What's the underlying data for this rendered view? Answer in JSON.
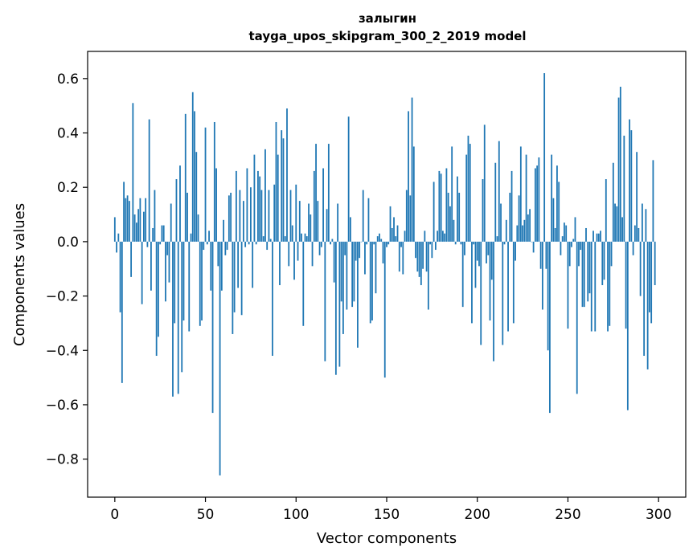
{
  "chart_data": {
    "type": "bar",
    "title_line1": "залыгин",
    "title_line2": "tayga_upos_skipgram_300_2_2019 model",
    "xlabel": "Vector components",
    "ylabel": "Components values",
    "xlim": [
      -15,
      315
    ],
    "ylim": [
      -0.94,
      0.7
    ],
    "xticks": [
      0,
      50,
      100,
      150,
      200,
      250,
      300
    ],
    "yticks": [
      0.6,
      0.4,
      0.2,
      0.0,
      -0.2,
      -0.4,
      -0.6,
      -0.8
    ],
    "ytick_labels": [
      "0.6",
      "0.4",
      "0.2",
      "0.0",
      "−0.2",
      "−0.4",
      "−0.6",
      "−0.8"
    ],
    "bar_color": "#1f77b4",
    "values": [
      0.09,
      -0.04,
      0.03,
      -0.26,
      -0.52,
      0.22,
      0.16,
      0.17,
      0.15,
      -0.13,
      0.51,
      0.1,
      0.07,
      0.12,
      0.16,
      -0.23,
      0.11,
      0.16,
      -0.02,
      0.45,
      -0.18,
      0.05,
      0.19,
      -0.42,
      -0.35,
      -0.01,
      0.06,
      0.06,
      -0.22,
      -0.05,
      -0.15,
      0.14,
      -0.57,
      -0.3,
      0.23,
      -0.56,
      0.28,
      -0.48,
      -0.29,
      0.47,
      0.18,
      -0.33,
      0.03,
      0.55,
      0.48,
      0.33,
      0.1,
      -0.31,
      -0.29,
      -0.03,
      0.42,
      -0.01,
      0.04,
      -0.18,
      -0.63,
      0.44,
      0.27,
      -0.09,
      -0.86,
      -0.18,
      0.08,
      -0.05,
      -0.03,
      0.17,
      0.18,
      -0.34,
      -0.26,
      0.26,
      -0.17,
      0.19,
      -0.27,
      0.15,
      -0.02,
      0.27,
      -0.01,
      0.2,
      -0.17,
      0.32,
      -0.01,
      0.26,
      0.24,
      0.19,
      0.02,
      0.34,
      -0.03,
      0.19,
      0.01,
      -0.42,
      0.21,
      0.44,
      0.32,
      -0.16,
      0.41,
      0.38,
      0.02,
      0.49,
      -0.09,
      0.19,
      0.06,
      -0.14,
      0.21,
      -0.07,
      0.15,
      0.03,
      -0.31,
      0.03,
      0.02,
      0.14,
      0.1,
      -0.09,
      0.26,
      0.36,
      0.15,
      -0.05,
      -0.02,
      0.27,
      -0.44,
      0.12,
      0.36,
      -0.01,
      0.01,
      -0.15,
      -0.49,
      0.14,
      -0.46,
      -0.22,
      -0.34,
      -0.05,
      -0.25,
      0.46,
      0.09,
      -0.24,
      -0.22,
      -0.07,
      -0.39,
      -0.06,
      0.0,
      0.19,
      -0.12,
      -0.01,
      0.16,
      -0.3,
      -0.29,
      -0.01,
      -0.19,
      0.02,
      0.03,
      0.01,
      -0.08,
      -0.5,
      -0.02,
      -0.01,
      0.13,
      0.05,
      0.09,
      0.02,
      0.06,
      -0.11,
      -0.02,
      -0.12,
      0.04,
      0.19,
      0.48,
      0.17,
      0.53,
      0.35,
      -0.06,
      -0.11,
      -0.13,
      -0.16,
      -0.1,
      0.04,
      -0.11,
      -0.25,
      -0.01,
      -0.06,
      0.22,
      -0.03,
      0.04,
      0.26,
      0.25,
      0.04,
      0.03,
      0.27,
      0.18,
      0.13,
      0.35,
      0.08,
      -0.01,
      0.24,
      0.18,
      -0.01,
      -0.24,
      -0.05,
      0.32,
      0.39,
      0.36,
      -0.3,
      -0.01,
      -0.17,
      -0.07,
      -0.09,
      -0.38,
      0.23,
      0.43,
      -0.08,
      -0.05,
      -0.29,
      -0.14,
      -0.44,
      0.29,
      0.02,
      0.37,
      0.14,
      -0.38,
      -0.01,
      0.08,
      -0.33,
      0.18,
      0.26,
      -0.3,
      -0.07,
      0.06,
      0.17,
      0.35,
      0.06,
      0.08,
      0.32,
      0.1,
      0.12,
      0.0,
      -0.04,
      0.27,
      0.28,
      0.31,
      -0.1,
      -0.25,
      0.62,
      -0.1,
      -0.4,
      -0.63,
      0.32,
      0.16,
      0.05,
      0.28,
      0.22,
      -0.05,
      0.02,
      0.07,
      0.06,
      -0.32,
      -0.09,
      -0.02,
      0.01,
      0.09,
      -0.56,
      -0.09,
      -0.03,
      -0.24,
      -0.24,
      0.05,
      -0.22,
      -0.19,
      -0.33,
      0.04,
      -0.33,
      0.03,
      0.03,
      0.04,
      -0.16,
      -0.14,
      0.23,
      -0.33,
      -0.31,
      -0.09,
      0.29,
      0.14,
      0.13,
      0.53,
      0.57,
      0.09,
      0.39,
      -0.32,
      -0.62,
      0.45,
      0.41,
      -0.05,
      0.06,
      0.33,
      0.05,
      -0.2,
      0.14,
      -0.42,
      0.12,
      -0.47,
      -0.26,
      -0.3,
      0.3,
      -0.16
    ]
  }
}
